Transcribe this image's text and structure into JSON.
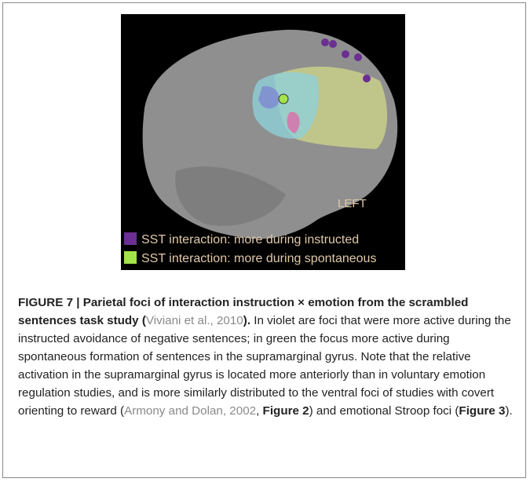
{
  "figure": {
    "image_labels": {
      "hemisphere": "LEFT",
      "legend": [
        {
          "color": "#6b2f93",
          "text": "SST interaction: more during instructed"
        },
        {
          "color": "#a3e44a",
          "text": "SST interaction: more during spontaneous"
        }
      ]
    },
    "caption": {
      "segments": [
        {
          "style": "bold",
          "text": "FIGURE 7 | Parietal foci of interaction instruction × emotion from the scrambled sentences task study ("
        },
        {
          "style": "link",
          "text": "Viviani et al., 2010"
        },
        {
          "style": "bold",
          "text": ")."
        },
        {
          "style": "normal",
          "text": " In violet are foci that were more active during the instructed avoidance of negative sentences; in green the focus more active during spontaneous formation of sentences in the supramarginal gyrus. Note that the relative activation in the supramarginal gyrus is located more anteriorly than in voluntary emotion regulation studies, and is more similarly distributed to the ventral foci of studies with covert orienting to reward ("
        },
        {
          "style": "link",
          "text": "Armony and Dolan, 2002"
        },
        {
          "style": "normal",
          "text": ", "
        },
        {
          "style": "bold",
          "text": "Figure 2"
        },
        {
          "style": "normal",
          "text": ") and emotional Stroop foci ("
        },
        {
          "style": "bold",
          "text": "Figure 3"
        },
        {
          "style": "normal",
          "text": ")."
        }
      ]
    }
  }
}
